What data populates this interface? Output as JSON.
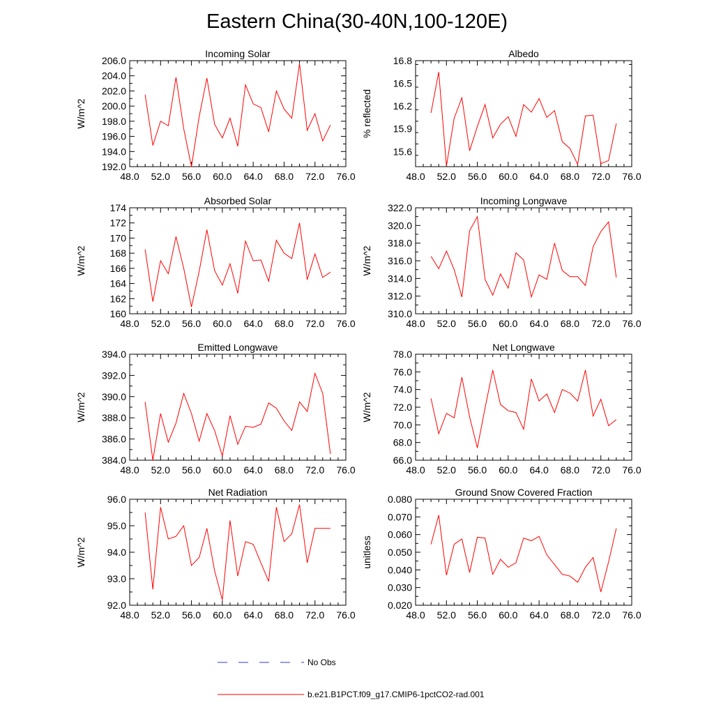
{
  "page_title": "Eastern China(30-40N,100-120E)",
  "colors": {
    "model_line": "#ff0000",
    "obs_line": "#2b3ad6",
    "frame": "#000000"
  },
  "legend": [
    {
      "label": "No Obs",
      "color": "#2b3ad6",
      "style": "dashed"
    },
    {
      "label": "b.e21.B1PCT.f09_g17.CMIP6-1pctCO2-rad.001",
      "color": "#ff0000",
      "style": "solid"
    }
  ],
  "chart_data": [
    {
      "type": "line",
      "title": "Incoming Solar",
      "ylabel": "W/m^2",
      "xlim": [
        48,
        76
      ],
      "ylim": [
        192,
        206
      ],
      "xticks": [
        48,
        52,
        56,
        60,
        64,
        68,
        72,
        76
      ],
      "xtick_labels": [
        "48.0",
        "52.0",
        "56.0",
        "60.0",
        "64.0",
        "68.0",
        "72.0",
        "76.0"
      ],
      "yticks": [
        192,
        194,
        196,
        198,
        200,
        202,
        204,
        206
      ],
      "ytick_labels": [
        "192.0",
        "194.0",
        "196.0",
        "198.0",
        "200.0",
        "202.0",
        "204.0",
        "206.0"
      ],
      "x": [
        50,
        51,
        52,
        53,
        54,
        55,
        56,
        57,
        58,
        59,
        60,
        61,
        62,
        63,
        64,
        65,
        66,
        67,
        68,
        69,
        70,
        71,
        72,
        73,
        74
      ],
      "series": [
        {
          "values": [
            201.5,
            194.8,
            198.0,
            197.4,
            203.8,
            197.0,
            192.0,
            198.6,
            203.7,
            197.6,
            195.8,
            198.4,
            194.7,
            202.8,
            200.3,
            199.8,
            196.6,
            202.0,
            199.6,
            198.4,
            205.6,
            196.8,
            199.0,
            195.4,
            197.5
          ]
        }
      ]
    },
    {
      "type": "line",
      "title": "Albedo",
      "ylabel": "% reflected",
      "xlim": [
        48,
        76
      ],
      "ylim": [
        15.4,
        16.8
      ],
      "xticks": [
        48,
        52,
        56,
        60,
        64,
        68,
        72,
        76
      ],
      "xtick_labels": [
        "48.0",
        "52.0",
        "56.0",
        "60.0",
        "64.0",
        "68.0",
        "72.0",
        "76.0"
      ],
      "yticks": [
        15.6,
        15.9,
        16.2,
        16.5,
        16.8
      ],
      "ytick_labels": [
        "15.6",
        "15.9",
        "16.2",
        "16.5",
        "16.8"
      ],
      "x": [
        50,
        51,
        52,
        53,
        54,
        55,
        56,
        57,
        58,
        59,
        60,
        61,
        62,
        63,
        64,
        65,
        66,
        67,
        68,
        69,
        70,
        71,
        72,
        73,
        74
      ],
      "series": [
        {
          "values": [
            16.11,
            16.65,
            15.41,
            16.04,
            16.31,
            15.61,
            15.93,
            16.22,
            15.78,
            15.96,
            16.06,
            15.8,
            16.22,
            16.12,
            16.3,
            16.05,
            16.14,
            15.73,
            15.64,
            15.43,
            16.07,
            16.08,
            15.44,
            15.48,
            15.97
          ]
        }
      ]
    },
    {
      "type": "line",
      "title": "Absorbed Solar",
      "ylabel": "W/m^2",
      "xlim": [
        48,
        76
      ],
      "ylim": [
        160,
        174
      ],
      "xticks": [
        48,
        52,
        56,
        60,
        64,
        68,
        72,
        76
      ],
      "xtick_labels": [
        "48.0",
        "52.0",
        "56.0",
        "60.0",
        "64.0",
        "68.0",
        "72.0",
        "76.0"
      ],
      "yticks": [
        160,
        162,
        164,
        166,
        168,
        170,
        172,
        174
      ],
      "ytick_labels": [
        "160",
        "162",
        "164",
        "166",
        "168",
        "170",
        "172",
        "174"
      ],
      "x": [
        50,
        51,
        52,
        53,
        54,
        55,
        56,
        57,
        58,
        59,
        60,
        61,
        62,
        63,
        64,
        65,
        66,
        67,
        68,
        69,
        70,
        71,
        72,
        73,
        74
      ],
      "series": [
        {
          "values": [
            168.5,
            161.6,
            167.0,
            165.3,
            170.2,
            166.0,
            160.9,
            165.6,
            171.1,
            165.7,
            163.8,
            166.6,
            162.7,
            169.6,
            167.0,
            167.1,
            164.3,
            169.7,
            168.0,
            167.3,
            172.0,
            164.5,
            167.9,
            164.8,
            165.5
          ]
        }
      ]
    },
    {
      "type": "line",
      "title": "Incoming Longwave",
      "ylabel": "W/m^2",
      "xlim": [
        48,
        76
      ],
      "ylim": [
        310,
        322
      ],
      "xticks": [
        48,
        52,
        56,
        60,
        64,
        68,
        72,
        76
      ],
      "xtick_labels": [
        "48.0",
        "52.0",
        "56.0",
        "60.0",
        "64.0",
        "68.0",
        "72.0",
        "76.0"
      ],
      "yticks": [
        310,
        312,
        314,
        316,
        318,
        320,
        322
      ],
      "ytick_labels": [
        "310.0",
        "312.0",
        "314.0",
        "316.0",
        "318.0",
        "320.0",
        "322.0"
      ],
      "x": [
        50,
        51,
        52,
        53,
        54,
        55,
        56,
        57,
        58,
        59,
        60,
        61,
        62,
        63,
        64,
        65,
        66,
        67,
        68,
        69,
        70,
        71,
        72,
        73,
        74
      ],
      "series": [
        {
          "values": [
            316.5,
            315.1,
            317.1,
            315.0,
            311.9,
            319.4,
            321.0,
            313.9,
            312.1,
            314.5,
            312.9,
            316.9,
            316.1,
            311.9,
            314.4,
            313.9,
            318.0,
            314.9,
            314.2,
            314.2,
            313.2,
            317.6,
            319.3,
            320.4,
            314.1
          ]
        }
      ]
    },
    {
      "type": "line",
      "title": "Emitted Longwave",
      "ylabel": "W/m^2",
      "xlim": [
        48,
        76
      ],
      "ylim": [
        384,
        394
      ],
      "xticks": [
        48,
        52,
        56,
        60,
        64,
        68,
        72,
        76
      ],
      "xtick_labels": [
        "48.0",
        "52.0",
        "56.0",
        "60.0",
        "64.0",
        "68.0",
        "72.0",
        "76.0"
      ],
      "yticks": [
        384,
        386,
        388,
        390,
        392,
        394
      ],
      "ytick_labels": [
        "384.0",
        "386.0",
        "388.0",
        "390.0",
        "392.0",
        "394.0"
      ],
      "x": [
        50,
        51,
        52,
        53,
        54,
        55,
        56,
        57,
        58,
        59,
        60,
        61,
        62,
        63,
        64,
        65,
        66,
        67,
        68,
        69,
        70,
        71,
        72,
        73,
        74
      ],
      "series": [
        {
          "values": [
            389.5,
            384.0,
            388.4,
            385.7,
            387.5,
            390.3,
            388.4,
            385.8,
            388.4,
            386.8,
            384.4,
            388.2,
            385.5,
            387.2,
            387.1,
            387.4,
            389.4,
            388.9,
            387.7,
            386.8,
            389.5,
            388.6,
            392.2,
            390.3,
            384.6
          ]
        }
      ]
    },
    {
      "type": "line",
      "title": "Net Longwave",
      "ylabel": "W/m^2",
      "xlim": [
        48,
        76
      ],
      "ylim": [
        66,
        78
      ],
      "xticks": [
        48,
        52,
        56,
        60,
        64,
        68,
        72,
        76
      ],
      "xtick_labels": [
        "48.0",
        "52.0",
        "56.0",
        "60.0",
        "64.0",
        "68.0",
        "72.0",
        "76.0"
      ],
      "yticks": [
        66,
        68,
        70,
        72,
        74,
        76,
        78
      ],
      "ytick_labels": [
        "66.0",
        "68.0",
        "70.0",
        "72.0",
        "74.0",
        "76.0",
        "78.0"
      ],
      "x": [
        50,
        51,
        52,
        53,
        54,
        55,
        56,
        57,
        58,
        59,
        60,
        61,
        62,
        63,
        64,
        65,
        66,
        67,
        68,
        69,
        70,
        71,
        72,
        73,
        74
      ],
      "series": [
        {
          "values": [
            73.0,
            69.0,
            71.3,
            70.8,
            75.4,
            70.9,
            67.4,
            71.9,
            76.2,
            72.3,
            71.6,
            71.4,
            69.5,
            75.2,
            72.7,
            73.5,
            71.4,
            74.0,
            73.6,
            72.7,
            76.2,
            71.0,
            72.9,
            69.9,
            70.6
          ]
        }
      ]
    },
    {
      "type": "line",
      "title": "Net Radiation",
      "ylabel": "W/m^2",
      "xlim": [
        48,
        76
      ],
      "ylim": [
        92,
        96
      ],
      "xticks": [
        48,
        52,
        56,
        60,
        64,
        68,
        72,
        76
      ],
      "xtick_labels": [
        "48.0",
        "52.0",
        "56.0",
        "60.0",
        "64.0",
        "68.0",
        "72.0",
        "76.0"
      ],
      "yticks": [
        92,
        93,
        94,
        95,
        96
      ],
      "ytick_labels": [
        "92.0",
        "93.0",
        "94.0",
        "95.0",
        "96.0"
      ],
      "x": [
        50,
        51,
        52,
        53,
        54,
        55,
        56,
        57,
        58,
        59,
        60,
        61,
        62,
        63,
        64,
        65,
        66,
        67,
        68,
        69,
        70,
        71,
        72,
        73,
        74
      ],
      "series": [
        {
          "values": [
            95.5,
            92.6,
            95.7,
            94.5,
            94.6,
            95.0,
            93.5,
            93.8,
            94.9,
            93.3,
            92.2,
            95.2,
            93.1,
            94.4,
            94.3,
            93.6,
            92.9,
            95.7,
            94.4,
            94.7,
            95.8,
            93.6,
            94.9,
            94.9,
            94.9
          ]
        }
      ]
    },
    {
      "type": "line",
      "title": "Ground Snow Covered Fraction",
      "ylabel": "unitless",
      "xlim": [
        48,
        76
      ],
      "ylim": [
        0.02,
        0.08
      ],
      "xticks": [
        48,
        52,
        56,
        60,
        64,
        68,
        72,
        76
      ],
      "xtick_labels": [
        "48.0",
        "52.0",
        "56.0",
        "60.0",
        "64.0",
        "68.0",
        "72.0",
        "76.0"
      ],
      "yticks": [
        0.02,
        0.03,
        0.04,
        0.05,
        0.06,
        0.07,
        0.08
      ],
      "ytick_labels": [
        "0.020",
        "0.030",
        "0.040",
        "0.050",
        "0.060",
        "0.070",
        "0.080"
      ],
      "x": [
        50,
        51,
        52,
        53,
        54,
        55,
        56,
        57,
        58,
        59,
        60,
        61,
        62,
        63,
        64,
        65,
        66,
        67,
        68,
        69,
        70,
        71,
        72,
        73,
        74
      ],
      "series": [
        {
          "values": [
            0.0545,
            0.071,
            0.037,
            0.0545,
            0.0575,
            0.0385,
            0.0585,
            0.058,
            0.0375,
            0.046,
            0.0415,
            0.044,
            0.058,
            0.0565,
            0.059,
            0.0485,
            0.043,
            0.0375,
            0.0365,
            0.033,
            0.0415,
            0.047,
            0.0275,
            0.0445,
            0.0635
          ]
        }
      ]
    }
  ]
}
